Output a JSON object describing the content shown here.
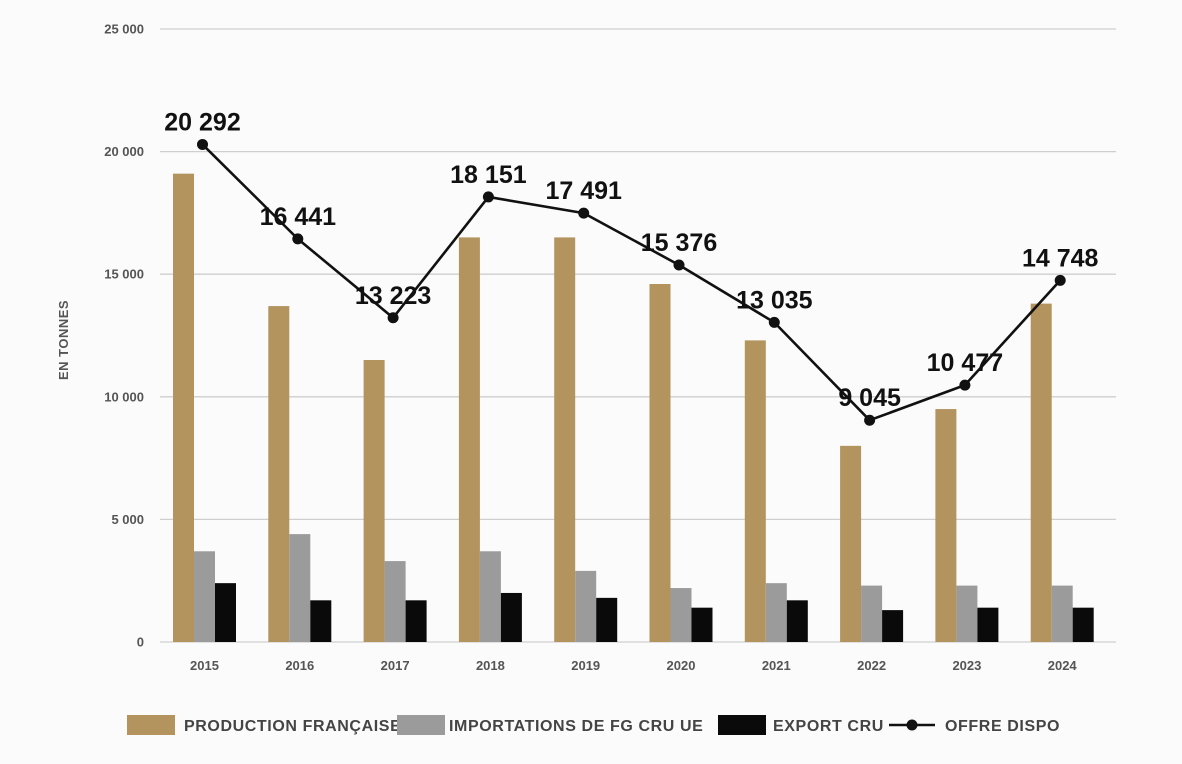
{
  "chart_data": {
    "type": "bar",
    "ylabel": "EN TONNES",
    "ylim": [
      0,
      25000
    ],
    "yticks": [
      "0",
      "5 000",
      "10 000",
      "15 000",
      "20 000",
      "25 000"
    ],
    "ytick_values": [
      0,
      5000,
      10000,
      15000,
      20000,
      25000
    ],
    "categories": [
      "2015",
      "2016",
      "2017",
      "2018",
      "2019",
      "2020",
      "2021",
      "2022",
      "2023",
      "2024"
    ],
    "series": [
      {
        "name": "PRODUCTION FRANÇAISE",
        "type": "bar",
        "color": "#b3935e",
        "values": [
          19100,
          13700,
          11500,
          16500,
          16500,
          14600,
          12300,
          8000,
          9500,
          13800
        ]
      },
      {
        "name": "IMPORTATIONS DE FG CRU UE",
        "type": "bar",
        "color": "#9b9b9b",
        "values": [
          3700,
          4400,
          3300,
          3700,
          2900,
          2200,
          2400,
          2300,
          2300,
          2300
        ]
      },
      {
        "name": "EXPORT CRU",
        "type": "bar",
        "color": "#0a0a0a",
        "values": [
          2400,
          1700,
          1700,
          2000,
          1800,
          1400,
          1700,
          1300,
          1400,
          1400
        ]
      },
      {
        "name": "OFFRE DISPO",
        "type": "line",
        "color": "#111111",
        "values": [
          20292,
          16441,
          13223,
          18151,
          17491,
          15376,
          13035,
          9045,
          10477,
          14748
        ],
        "labels": [
          "20 292",
          "16 441",
          "13 223",
          "18 151",
          "17 491",
          "15 376",
          "13 035",
          "9 045",
          "10 477",
          "14 748"
        ]
      }
    ],
    "legend_position": "bottom",
    "grid": true
  }
}
